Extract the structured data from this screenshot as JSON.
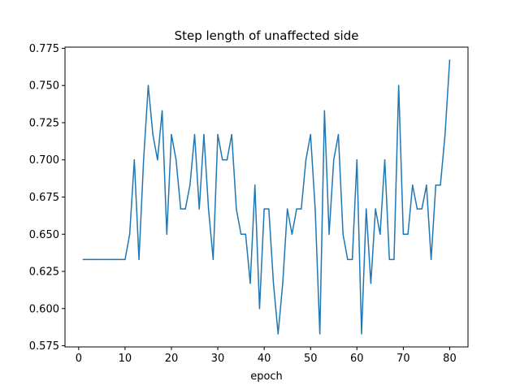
{
  "chart_data": {
    "type": "line",
    "title": "Step length of unaffected side",
    "xlabel": "epoch",
    "ylabel": "",
    "xlim": [
      -2.95,
      83.95
    ],
    "ylim": [
      0.5742,
      0.7758
    ],
    "xticks": [
      0,
      10,
      20,
      30,
      40,
      50,
      60,
      70,
      80
    ],
    "yticks": [
      0.575,
      0.6,
      0.625,
      0.65,
      0.675,
      0.7,
      0.725,
      0.75,
      0.775
    ],
    "ytick_labels": [
      "0.575",
      "0.600",
      "0.625",
      "0.650",
      "0.675",
      "0.700",
      "0.725",
      "0.750",
      "0.775"
    ],
    "grid": false,
    "color": "#1f77b4",
    "series": [
      {
        "x": [
          1,
          2,
          3,
          4,
          5,
          6,
          7,
          8,
          9,
          10,
          11,
          12,
          13,
          14,
          15,
          16,
          17,
          18,
          19,
          20,
          21,
          22,
          23,
          24,
          25,
          26,
          27,
          28,
          29,
          30,
          31,
          32,
          33,
          34,
          35,
          36,
          37,
          38,
          39,
          40,
          41,
          42,
          43,
          44,
          45,
          46,
          47,
          48,
          49,
          50,
          51,
          52,
          53,
          54,
          55,
          56,
          57,
          58,
          59,
          60,
          61,
          62,
          63,
          64,
          65,
          66,
          67,
          68,
          69,
          70,
          71,
          72,
          73,
          74,
          75,
          76,
          77,
          78,
          79,
          80
        ],
        "values": [
          0.633,
          0.633,
          0.633,
          0.633,
          0.633,
          0.633,
          0.633,
          0.633,
          0.633,
          0.633,
          0.65,
          0.7,
          0.633,
          0.7,
          0.75,
          0.717,
          0.7,
          0.733,
          0.65,
          0.717,
          0.7,
          0.667,
          0.667,
          0.683,
          0.717,
          0.667,
          0.717,
          0.667,
          0.633,
          0.717,
          0.7,
          0.7,
          0.717,
          0.667,
          0.65,
          0.65,
          0.617,
          0.683,
          0.6,
          0.667,
          0.667,
          0.617,
          0.583,
          0.617,
          0.667,
          0.65,
          0.667,
          0.667,
          0.7,
          0.717,
          0.667,
          0.583,
          0.733,
          0.65,
          0.7,
          0.717,
          0.65,
          0.633,
          0.633,
          0.7,
          0.583,
          0.667,
          0.617,
          0.667,
          0.65,
          0.7,
          0.633,
          0.633,
          0.75,
          0.65,
          0.65,
          0.683,
          0.667,
          0.667,
          0.683,
          0.633,
          0.683,
          0.683,
          0.717,
          0.767
        ]
      }
    ]
  }
}
